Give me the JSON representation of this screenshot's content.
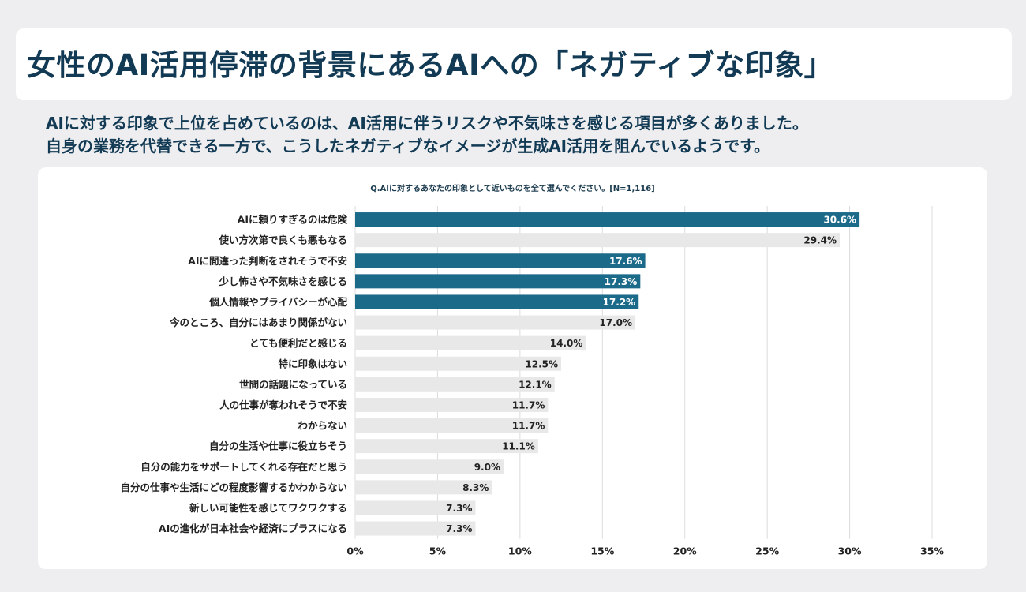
{
  "header": {
    "title": "女性のAI活用停滞の背景にあるAIへの「ネガティブな印象」"
  },
  "summary": {
    "line1": "AIに対する印象で上位を占めているのは、AI活用に伴うリスクや不気味さを感じる項目が多くありました。",
    "line2": "自身の業務を代替できる一方で、こうしたネガティブなイメージが生成AI活用を阻んでいるようです。"
  },
  "chart_data": {
    "type": "bar",
    "orientation": "horizontal",
    "title": "Q.AIに対するあなたの印象として近いものを全て選んでください。[N=1,116]",
    "categories": [
      "AIに頼りすぎるのは危険",
      "使い方次第で良くも悪もなる",
      "AIに間違った判断をされそうで不安",
      "少し怖さや不気味さを感じる",
      "個人情報やプライバシーが心配",
      "今のところ、自分にはあまり関係がない",
      "とても便利だと感じる",
      "特に印象はない",
      "世間の話題になっている",
      "人の仕事が奪われそうで不安",
      "わからない",
      "自分の生活や仕事に役立ちそう",
      "自分の能力をサポートしてくれる存在だと思う",
      "自分の仕事や生活にどの程度影響するかわからない",
      "新しい可能性を感じてワクワクする",
      "AIの進化が日本社会や経済にプラスになる"
    ],
    "values": [
      30.6,
      29.4,
      17.6,
      17.3,
      17.2,
      17.0,
      14.0,
      12.5,
      12.1,
      11.7,
      11.7,
      11.1,
      9.0,
      8.3,
      7.3,
      7.3
    ],
    "value_labels": [
      "30.6%",
      "29.4%",
      "17.6%",
      "17.3%",
      "17.2%",
      "17.0%",
      "14.0%",
      "12.5%",
      "12.1%",
      "11.7%",
      "11.7%",
      "11.1%",
      "9.0%",
      "8.3%",
      "7.3%",
      "7.3%"
    ],
    "highlighted": [
      true,
      false,
      true,
      true,
      true,
      false,
      false,
      false,
      false,
      false,
      false,
      false,
      false,
      false,
      false,
      false
    ],
    "xlim": [
      0,
      35
    ],
    "x_ticks": [
      "0%",
      "5%",
      "10%",
      "15%",
      "20%",
      "25%",
      "30%",
      "35%"
    ],
    "grid": true,
    "colors": {
      "highlight": "#1c6a8a",
      "normal": "#e8e8e8",
      "highlight_text": "#ffffff",
      "normal_text": "#222222",
      "grid": "#dcdcdc"
    }
  }
}
